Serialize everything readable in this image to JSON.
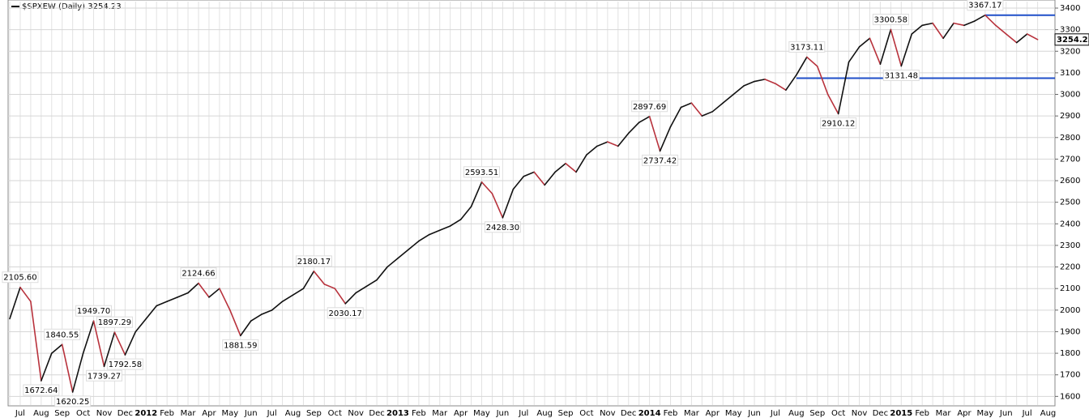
{
  "chart_data": {
    "type": "line",
    "categories": [
      "Jul",
      null,
      "Aug",
      null,
      "Sep",
      null,
      "Oct",
      null,
      "Nov",
      null,
      "Dec",
      null,
      "2012",
      null,
      "Feb",
      null,
      "Mar",
      null,
      "Apr",
      null,
      "May",
      null,
      "Jun",
      null,
      "Jul",
      null,
      "Aug",
      null,
      "Sep",
      null,
      "Oct",
      null,
      "Nov",
      null,
      "Dec",
      null,
      "2013",
      null,
      "Feb",
      null,
      "Mar",
      null,
      "Apr",
      null,
      "May",
      null,
      "Jun",
      null,
      "Jul",
      null,
      "Aug",
      null,
      "Sep",
      null,
      "Oct",
      null,
      "Nov",
      null,
      "Dec",
      null,
      "2014",
      null,
      "Feb",
      null,
      "Mar",
      null,
      "Apr",
      null,
      "May",
      null,
      "Jun",
      null,
      "Jul",
      null,
      "Aug",
      null,
      "Sep",
      null,
      "Oct",
      null,
      "Nov",
      null,
      "Dec",
      null,
      "2015",
      null,
      "Feb",
      null,
      "Mar",
      null,
      "Apr",
      null,
      "May",
      null,
      "Jun",
      null,
      "Jul",
      null,
      "Aug"
    ],
    "series": [
      {
        "name": "$SPXEW (Daily) 3254.23",
        "up_color": "#111111",
        "down_color": "#b8323c",
        "values": [
          1960,
          2105.6,
          2040,
          1672.64,
          1800,
          1840.55,
          1620.25,
          1800,
          1949.7,
          1739.27,
          1897.29,
          1792.58,
          1900,
          1960,
          2020,
          2040,
          2060,
          2080,
          2124.66,
          2060,
          2100,
          2000,
          1881.59,
          1950,
          1980,
          2000,
          2040,
          2070,
          2100,
          2180.17,
          2120,
          2100,
          2030.17,
          2080,
          2110,
          2140,
          2200,
          2240,
          2280,
          2320,
          2350,
          2370,
          2390,
          2420,
          2480,
          2593.51,
          2540,
          2428.3,
          2560,
          2620,
          2640,
          2580,
          2640,
          2680,
          2640,
          2720,
          2760,
          2780,
          2760,
          2820,
          2870,
          2897.69,
          2737.42,
          2850,
          2940,
          2960,
          2900,
          2920,
          2960,
          3000,
          3040,
          3060,
          3070,
          3050,
          3020,
          3090,
          3173.11,
          3130,
          3000,
          2910.12,
          3150,
          3220,
          3260,
          3140,
          3300.58,
          3131.48,
          3280,
          3320,
          3330,
          3260,
          3330,
          3320,
          3340,
          3367.17,
          3320,
          3280,
          3240,
          3280,
          3254.23
        ],
        "value_labels": [
          null,
          "2105.60",
          null,
          "1672.64",
          null,
          "1840.55",
          "1620.25",
          null,
          "1949.70",
          "1739.27",
          "1897.29",
          "1792.58",
          null,
          null,
          null,
          null,
          null,
          null,
          "2124.66",
          null,
          null,
          null,
          "1881.59",
          null,
          null,
          null,
          null,
          null,
          null,
          "2180.17",
          null,
          null,
          "2030.17",
          null,
          null,
          null,
          null,
          null,
          null,
          null,
          null,
          null,
          null,
          null,
          null,
          "2593.51",
          null,
          "2428.30",
          null,
          null,
          null,
          null,
          null,
          null,
          null,
          null,
          null,
          null,
          null,
          null,
          null,
          "2897.69",
          "2737.42",
          null,
          null,
          null,
          null,
          null,
          null,
          null,
          null,
          null,
          null,
          null,
          null,
          null,
          "3173.11",
          null,
          null,
          "2910.12",
          null,
          null,
          null,
          null,
          "3300.58",
          "3131.48",
          null,
          null,
          null,
          null,
          null,
          null,
          null,
          "3367.17",
          null,
          null,
          null,
          null,
          "3254.23"
        ]
      }
    ],
    "hlines": [
      {
        "value": 3075,
        "color": "#1f4fc8"
      },
      {
        "value": 3367.17,
        "color": "#1f4fc8"
      }
    ],
    "ylim": [
      1560,
      3430
    ],
    "yticks": [
      1600,
      1700,
      1800,
      1900,
      2000,
      2100,
      2200,
      2300,
      2400,
      2500,
      2600,
      2700,
      2800,
      2900,
      3000,
      3100,
      3200,
      3300,
      3400
    ],
    "grid": true,
    "y_axis_side": "right"
  }
}
